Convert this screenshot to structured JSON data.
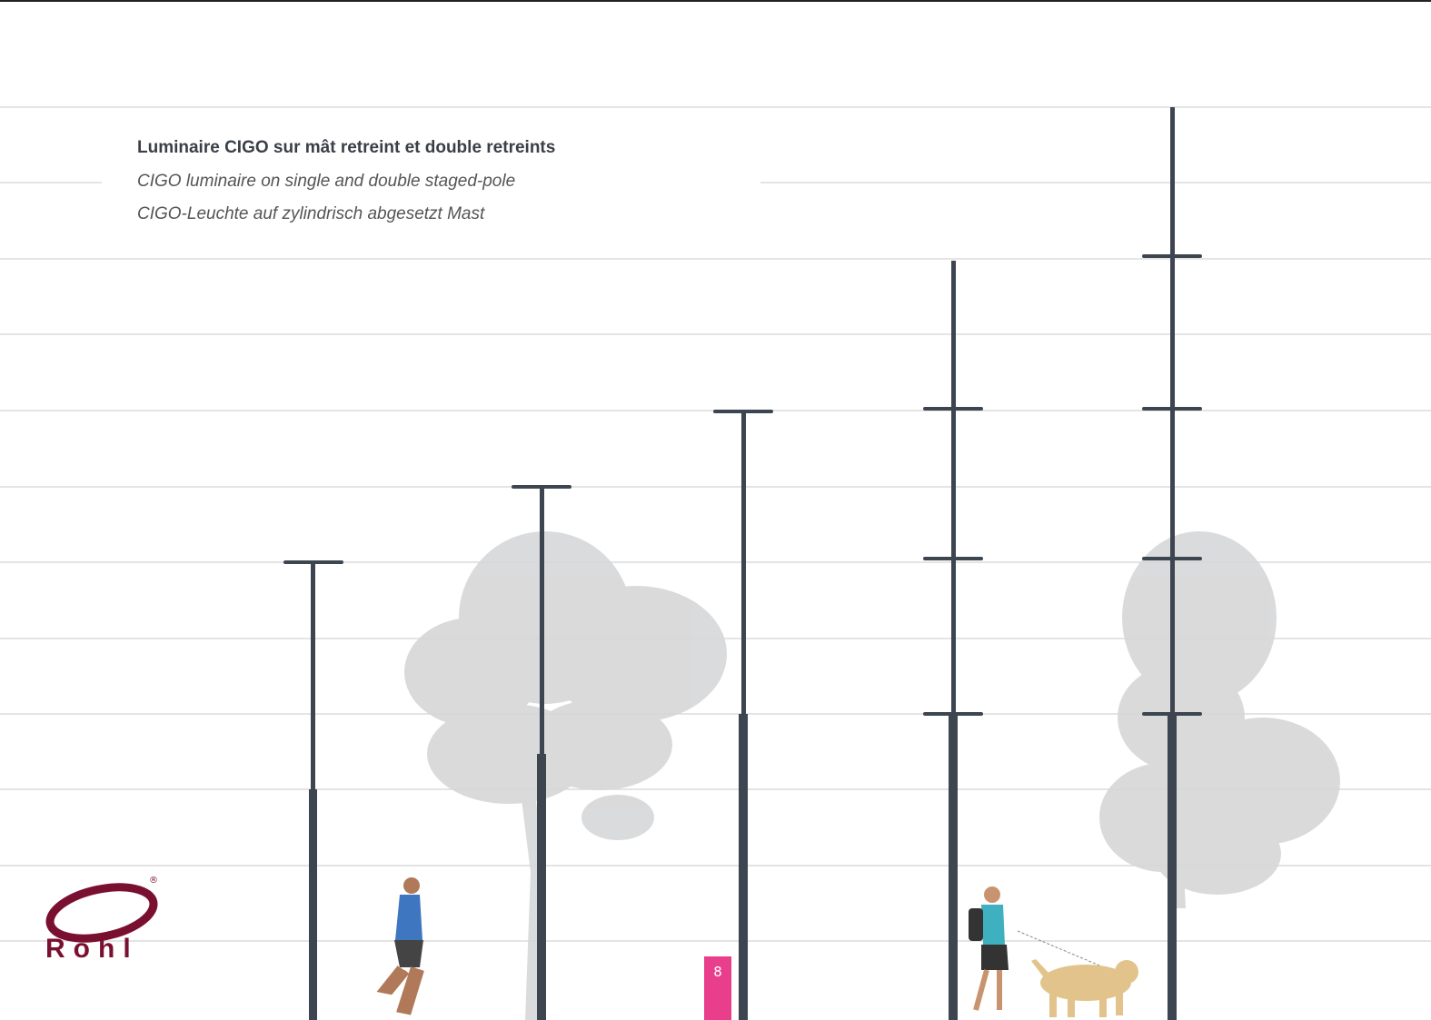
{
  "header": {
    "title": "Luminaire CIGO sur mât retreint et double retreints",
    "subtitle_en": "CIGO luminaire on single and double staged-pole",
    "subtitle_de": "CIGO-Leuchte auf zylindrisch abgesetzt Mast"
  },
  "logo": {
    "name": "Rohl",
    "mark": "®"
  },
  "page_number": "8"
}
